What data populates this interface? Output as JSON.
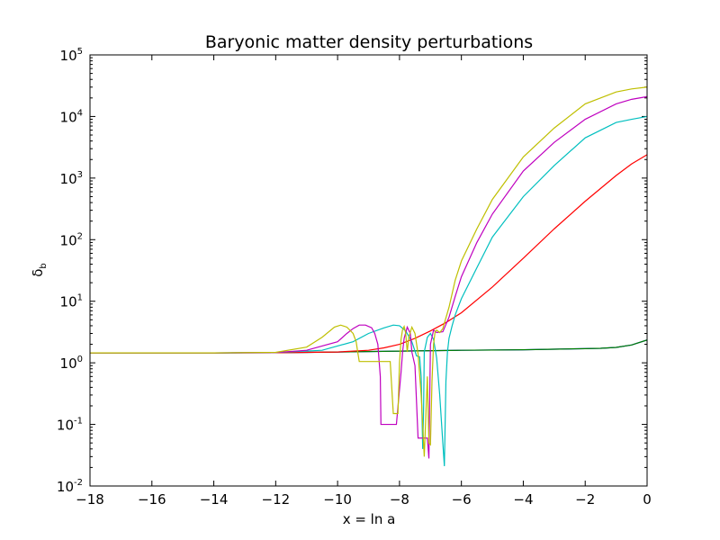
{
  "chart_data": {
    "type": "line",
    "title": "Baryonic matter density perturbations",
    "xlabel": "x = ln a",
    "ylabel_base": "δ",
    "ylabel_sub": "b",
    "xlim": [
      -18,
      0
    ],
    "ylim": [
      0.01,
      100000
    ],
    "yscale": "log",
    "grid": false,
    "x_ticks": [
      -18,
      -16,
      -14,
      -12,
      -10,
      -8,
      -6,
      -4,
      -2,
      0
    ],
    "x_tick_labels": [
      "−18",
      "−16",
      "−14",
      "−12",
      "−10",
      "−8",
      "−6",
      "−4",
      "−2",
      "0"
    ],
    "y_ticks": [
      {
        "value": 0.01,
        "base": "10",
        "exp": "-2"
      },
      {
        "value": 0.1,
        "base": "10",
        "exp": "-1"
      },
      {
        "value": 1,
        "base": "10",
        "exp": "0"
      },
      {
        "value": 10,
        "base": "10",
        "exp": "1"
      },
      {
        "value": 100,
        "base": "10",
        "exp": "2"
      },
      {
        "value": 1000,
        "base": "10",
        "exp": "3"
      },
      {
        "value": 10000,
        "base": "10",
        "exp": "4"
      },
      {
        "value": 100000,
        "base": "10",
        "exp": "5"
      }
    ],
    "series": [
      {
        "color": "#0000ff",
        "x": [
          -18,
          -14,
          -12,
          -10,
          -8,
          -6,
          -4,
          -2,
          -1.5,
          -1,
          -0.5,
          0
        ],
        "y": [
          1.45,
          1.45,
          1.46,
          1.5,
          1.55,
          1.6,
          1.63,
          1.7,
          1.72,
          1.78,
          1.95,
          2.35
        ]
      },
      {
        "color": "#008000",
        "x": [
          -18,
          -14,
          -12,
          -10,
          -8,
          -6,
          -4,
          -2,
          -1.5,
          -1,
          -0.5,
          0
        ],
        "y": [
          1.45,
          1.45,
          1.46,
          1.5,
          1.55,
          1.6,
          1.63,
          1.7,
          1.72,
          1.78,
          1.95,
          2.35
        ]
      },
      {
        "color": "#ff0000",
        "x": [
          -18,
          -14,
          -12,
          -10,
          -9,
          -8.5,
          -8,
          -7.5,
          -7,
          -6.5,
          -6,
          -5,
          -4,
          -3,
          -2,
          -1,
          -0.5,
          0
        ],
        "y": [
          1.45,
          1.45,
          1.46,
          1.5,
          1.6,
          1.75,
          2.0,
          2.5,
          3.3,
          4.5,
          6.5,
          17,
          50,
          150,
          420,
          1100,
          1700,
          2400
        ]
      },
      {
        "color": "#00bfbf",
        "x": [
          -18,
          -14,
          -12,
          -10.5,
          -9.5,
          -9,
          -8.5,
          -8.2,
          -8.0,
          -7.8,
          -7.6,
          -7.45,
          -7.35,
          -7.3,
          -7.25,
          -7.22,
          -7.2,
          -7.1,
          -7.0,
          -6.9,
          -6.8,
          -6.7,
          -6.6,
          -6.55,
          -6.5,
          -6.45,
          -6.4,
          -6.3,
          -6.2,
          -6.0,
          -5.5,
          -5.0,
          -4.0,
          -3.0,
          -2.0,
          -1.0,
          -0.5,
          0
        ],
        "y": [
          1.45,
          1.45,
          1.47,
          1.6,
          2.2,
          3.0,
          3.7,
          4.1,
          4.0,
          3.3,
          2.2,
          1.3,
          1.25,
          0.6,
          0.04,
          0.2,
          1.5,
          2.6,
          3.0,
          2.4,
          1.2,
          0.3,
          0.05,
          0.021,
          0.5,
          1.5,
          2.5,
          4.0,
          6.0,
          11,
          35,
          110,
          500,
          1600,
          4500,
          8000,
          9000,
          10000
        ]
      },
      {
        "color": "#bf00bf",
        "x": [
          -18,
          -14,
          -12,
          -11,
          -10,
          -9.7,
          -9.5,
          -9.3,
          -9.1,
          -8.9,
          -8.8,
          -8.7,
          -8.62,
          -8.6,
          -8.55,
          -8.45,
          -8.3,
          -8.1,
          -7.95,
          -7.9,
          -7.85,
          -7.75,
          -7.65,
          -7.6,
          -7.5,
          -7.4,
          -7.3,
          -7.2,
          -7.1,
          -7.05,
          -7.0,
          -6.9,
          -6.8,
          -6.6,
          -6.4,
          -6.2,
          -6.0,
          -5.5,
          -5.0,
          -4.0,
          -3.0,
          -2.0,
          -1.0,
          -0.5,
          0
        ],
        "y": [
          1.45,
          1.45,
          1.47,
          1.6,
          2.2,
          3.0,
          3.6,
          4.1,
          4.1,
          3.7,
          3.0,
          2.0,
          0.6,
          0.1,
          0.1,
          0.1,
          0.1,
          0.1,
          0.7,
          1.5,
          2.5,
          3.8,
          3.0,
          1.5,
          0.9,
          0.06,
          0.06,
          0.06,
          0.06,
          0.028,
          2.0,
          3.4,
          3.1,
          3.2,
          5.5,
          12,
          25,
          90,
          260,
          1300,
          3800,
          9000,
          16000,
          19000,
          21000
        ]
      },
      {
        "color": "#bfbf00",
        "x": [
          -18,
          -14,
          -12,
          -11,
          -10.5,
          -10.1,
          -9.9,
          -9.7,
          -9.5,
          -9.4,
          -9.35,
          -9.3,
          -9.25,
          -9.2,
          -9.0,
          -8.8,
          -8.6,
          -8.4,
          -8.3,
          -8.2,
          -8.15,
          -8.1,
          -8.05,
          -8.0,
          -7.95,
          -7.9,
          -7.85,
          -7.8,
          -7.75,
          -7.7,
          -7.6,
          -7.5,
          -7.4,
          -7.3,
          -7.2,
          -7.1,
          -7.05,
          -7.0,
          -6.95,
          -6.9,
          -6.85,
          -6.8,
          -6.7,
          -6.6,
          -6.4,
          -6.2,
          -6.0,
          -5.5,
          -5.0,
          -4.0,
          -3.0,
          -2.0,
          -1.0,
          -0.5,
          0
        ],
        "y": [
          1.45,
          1.45,
          1.48,
          1.8,
          2.6,
          3.8,
          4.1,
          3.8,
          3.0,
          2.2,
          1.5,
          1.05,
          1.05,
          1.05,
          1.05,
          1.05,
          1.05,
          1.05,
          1.05,
          0.15,
          0.15,
          0.15,
          0.15,
          1.0,
          2.4,
          3.5,
          3.9,
          3.0,
          1.5,
          2.6,
          3.8,
          3.0,
          1.4,
          0.3,
          0.03,
          0.6,
          0.05,
          0.047,
          0.5,
          2.0,
          3.2,
          3.4,
          3.1,
          3.6,
          8.0,
          22,
          45,
          150,
          450,
          2200,
          6500,
          16000,
          25000,
          28000,
          30000
        ]
      }
    ]
  }
}
